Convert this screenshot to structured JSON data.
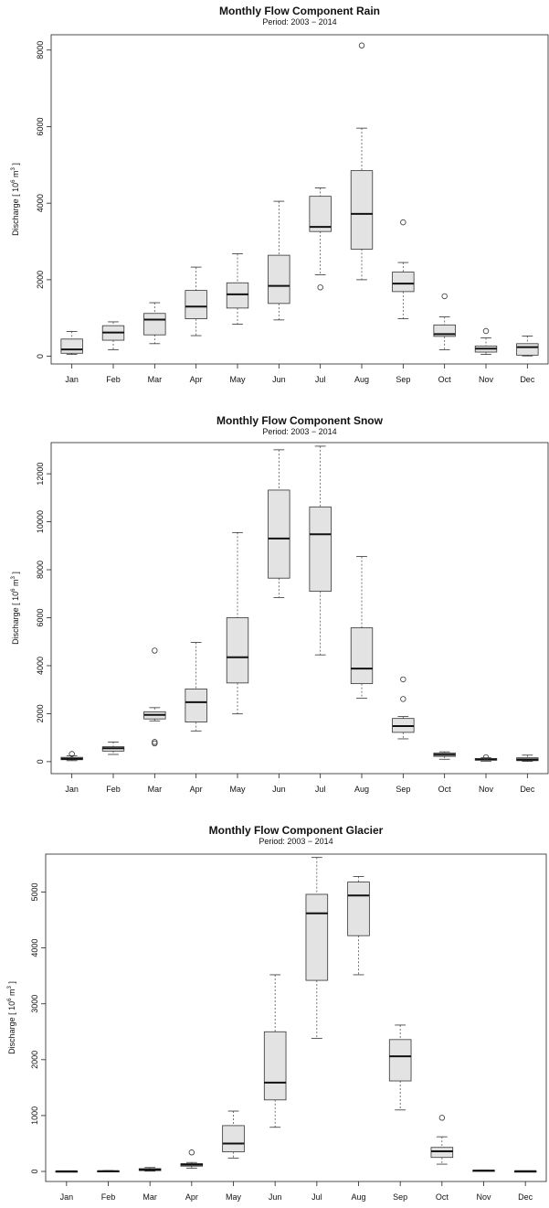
{
  "chart_data": [
    {
      "type": "box",
      "title": "Monthly Flow Component Rain",
      "subtitle": "Period: 2003 − 2014",
      "ylabel": "Discharge  [ 10^6 m^3 ]",
      "ylabel_parts": {
        "pre": "Discharge  [ 10",
        "exp1": "6",
        "mid": " m",
        "exp2": "3",
        "post": " ]"
      },
      "ylim": [
        -200,
        8400
      ],
      "yticks": [
        0,
        2000,
        4000,
        6000,
        8000
      ],
      "categories": [
        "Jan",
        "Feb",
        "Mar",
        "Apr",
        "May",
        "Jun",
        "Jul",
        "Aug",
        "Sep",
        "Oct",
        "Nov",
        "Dec"
      ],
      "boxes": [
        {
          "min": 50,
          "q1": 80,
          "median": 180,
          "q3": 450,
          "max": 650,
          "outliers": []
        },
        {
          "min": 170,
          "q1": 420,
          "median": 620,
          "q3": 800,
          "max": 900,
          "outliers": []
        },
        {
          "min": 330,
          "q1": 560,
          "median": 960,
          "q3": 1120,
          "max": 1400,
          "outliers": []
        },
        {
          "min": 540,
          "q1": 980,
          "median": 1300,
          "q3": 1720,
          "max": 2330,
          "outliers": []
        },
        {
          "min": 840,
          "q1": 1260,
          "median": 1620,
          "q3": 1920,
          "max": 2680,
          "outliers": []
        },
        {
          "min": 950,
          "q1": 1380,
          "median": 1840,
          "q3": 2640,
          "max": 4050,
          "outliers": []
        },
        {
          "min": 2130,
          "q1": 3260,
          "median": 3380,
          "q3": 4180,
          "max": 4400,
          "outliers": [
            1800
          ]
        },
        {
          "min": 2000,
          "q1": 2800,
          "median": 3720,
          "q3": 4850,
          "max": 5960,
          "outliers": [
            8120
          ]
        },
        {
          "min": 980,
          "q1": 1690,
          "median": 1900,
          "q3": 2200,
          "max": 2450,
          "outliers": [
            3500
          ]
        },
        {
          "min": 170,
          "q1": 520,
          "median": 580,
          "q3": 820,
          "max": 1030,
          "outliers": [
            1570
          ]
        },
        {
          "min": 50,
          "q1": 110,
          "median": 200,
          "q3": 270,
          "max": 480,
          "outliers": [
            660
          ]
        },
        {
          "min": 10,
          "q1": 30,
          "median": 240,
          "q3": 330,
          "max": 530,
          "outliers": []
        }
      ]
    },
    {
      "type": "box",
      "title": "Monthly Flow Component Snow",
      "subtitle": "Period: 2003 − 2014",
      "ylabel": "Discharge  [ 10^6 m^3 ]",
      "ylabel_parts": {
        "pre": "Discharge  [ 10",
        "exp1": "6",
        "mid": " m",
        "exp2": "3",
        "post": " ]"
      },
      "ylim": [
        -500,
        13300
      ],
      "yticks": [
        0,
        2000,
        4000,
        6000,
        8000,
        10000,
        12000
      ],
      "categories": [
        "Jan",
        "Feb",
        "Mar",
        "Apr",
        "May",
        "Jun",
        "Jul",
        "Aug",
        "Sep",
        "Oct",
        "Nov",
        "Dec"
      ],
      "boxes": [
        {
          "min": 40,
          "q1": 80,
          "median": 120,
          "q3": 180,
          "max": 250,
          "outliers": [
            320
          ]
        },
        {
          "min": 300,
          "q1": 440,
          "median": 560,
          "q3": 620,
          "max": 820,
          "outliers": []
        },
        {
          "min": 1700,
          "q1": 1780,
          "median": 1950,
          "q3": 2080,
          "max": 2250,
          "outliers": [
            4630,
            820,
            760
          ]
        },
        {
          "min": 1280,
          "q1": 1650,
          "median": 2480,
          "q3": 3030,
          "max": 4970,
          "outliers": []
        },
        {
          "min": 1990,
          "q1": 3280,
          "median": 4350,
          "q3": 6000,
          "max": 9550,
          "outliers": []
        },
        {
          "min": 6840,
          "q1": 7650,
          "median": 9300,
          "q3": 11320,
          "max": 13000,
          "outliers": []
        },
        {
          "min": 4450,
          "q1": 7100,
          "median": 9480,
          "q3": 10620,
          "max": 13150,
          "outliers": []
        },
        {
          "min": 2640,
          "q1": 3250,
          "median": 3880,
          "q3": 5580,
          "max": 8550,
          "outliers": []
        },
        {
          "min": 950,
          "q1": 1220,
          "median": 1480,
          "q3": 1800,
          "max": 1880,
          "outliers": [
            3430,
            2610
          ]
        },
        {
          "min": 100,
          "q1": 220,
          "median": 290,
          "q3": 360,
          "max": 410,
          "outliers": []
        },
        {
          "min": 20,
          "q1": 60,
          "median": 90,
          "q3": 130,
          "max": 160,
          "outliers": [
            180
          ]
        },
        {
          "min": 10,
          "q1": 40,
          "median": 90,
          "q3": 160,
          "max": 270,
          "outliers": []
        }
      ]
    },
    {
      "type": "box",
      "title": "Monthly Flow Component Glacier",
      "subtitle": "Period: 2003 − 2014",
      "ylabel": "Discharge  [ 10^6 m^3 ]",
      "ylabel_parts": {
        "pre": "Discharge  [ 10",
        "exp1": "6",
        "mid": " m",
        "exp2": "3",
        "post": " ]"
      },
      "ylim": [
        -180,
        5680
      ],
      "yticks": [
        0,
        1000,
        2000,
        3000,
        4000,
        5000
      ],
      "categories": [
        "Jan",
        "Feb",
        "Mar",
        "Apr",
        "May",
        "Jun",
        "Jul",
        "Aug",
        "Sep",
        "Oct",
        "Nov",
        "Dec"
      ],
      "boxes": [
        {
          "min": 0,
          "q1": 0,
          "median": 2,
          "q3": 5,
          "max": 8,
          "outliers": []
        },
        {
          "min": 0,
          "q1": 2,
          "median": 5,
          "q3": 10,
          "max": 15,
          "outliers": []
        },
        {
          "min": 5,
          "q1": 15,
          "median": 30,
          "q3": 50,
          "max": 70,
          "outliers": []
        },
        {
          "min": 60,
          "q1": 95,
          "median": 120,
          "q3": 140,
          "max": 160,
          "outliers": [
            340
          ]
        },
        {
          "min": 240,
          "q1": 350,
          "median": 500,
          "q3": 820,
          "max": 1080,
          "outliers": []
        },
        {
          "min": 790,
          "q1": 1280,
          "median": 1590,
          "q3": 2500,
          "max": 3520,
          "outliers": []
        },
        {
          "min": 2380,
          "q1": 3420,
          "median": 4620,
          "q3": 4960,
          "max": 5620,
          "outliers": []
        },
        {
          "min": 3520,
          "q1": 4220,
          "median": 4940,
          "q3": 5180,
          "max": 5280,
          "outliers": []
        },
        {
          "min": 1100,
          "q1": 1620,
          "median": 2060,
          "q3": 2360,
          "max": 2620,
          "outliers": []
        },
        {
          "min": 130,
          "q1": 250,
          "median": 360,
          "q3": 430,
          "max": 620,
          "outliers": [
            960
          ]
        },
        {
          "min": 5,
          "q1": 10,
          "median": 15,
          "q3": 20,
          "max": 25,
          "outliers": []
        },
        {
          "min": 0,
          "q1": 2,
          "median": 4,
          "q3": 6,
          "max": 8,
          "outliers": []
        }
      ]
    }
  ],
  "colors": {
    "box_fill": "#e3e3e3",
    "stroke": "#333333",
    "whisker": "#555555",
    "axis": "#222222"
  }
}
